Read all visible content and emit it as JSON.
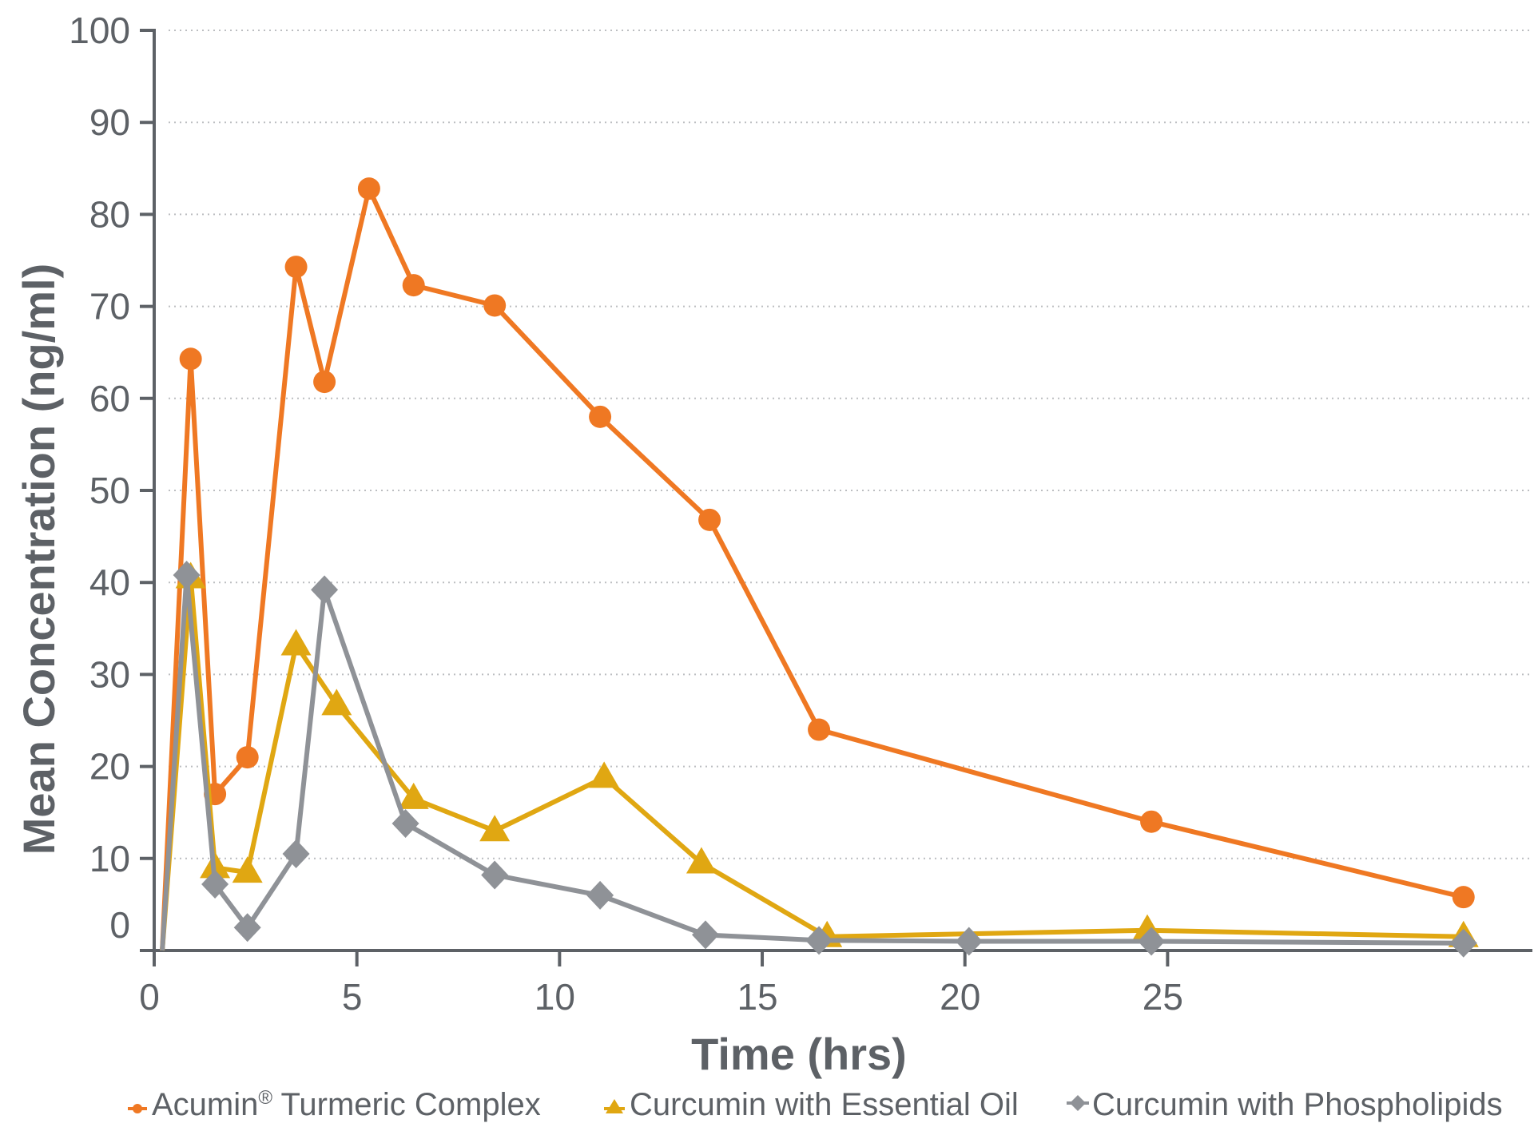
{
  "chart_data": {
    "type": "line",
    "title": "",
    "xlabel": "Time (hrs)",
    "ylabel": "Mean Concentration (ng/ml)",
    "xlim": [
      0,
      34
    ],
    "ylim": [
      0,
      100
    ],
    "xticks": [
      0,
      5,
      10,
      15,
      20,
      25
    ],
    "yticks": [
      0,
      10,
      20,
      30,
      40,
      50,
      60,
      70,
      80,
      90,
      100
    ],
    "grid": "horizontal-dotted",
    "legend_position": "bottom",
    "series": [
      {
        "name": "Acumin® Turmeric Complex",
        "legend_name": "Acumin",
        "legend_mark": "®",
        "legend_suffix": " Turmeric Complex",
        "color": "#ef7823",
        "marker": "circle",
        "points": [
          [
            0.2,
            0
          ],
          [
            0.9,
            64.3
          ],
          [
            1.5,
            17
          ],
          [
            2.3,
            21
          ],
          [
            3.5,
            74.3
          ],
          [
            4.2,
            61.8
          ],
          [
            5.3,
            82.8
          ],
          [
            6.4,
            72.3
          ],
          [
            8.4,
            70.1
          ],
          [
            11.0,
            58.0
          ],
          [
            13.7,
            46.8
          ],
          [
            16.4,
            24.0
          ],
          [
            24.6,
            14.0
          ],
          [
            32.3,
            5.8
          ]
        ]
      },
      {
        "name": "Curcumin with Essential Oil",
        "legend_name": "Curcumin with Essential Oil",
        "color": "#e0a712",
        "marker": "triangle",
        "points": [
          [
            0.2,
            0
          ],
          [
            0.9,
            40.5
          ],
          [
            1.5,
            9.0
          ],
          [
            2.3,
            8.5
          ],
          [
            3.5,
            33.2
          ],
          [
            4.5,
            26.7
          ],
          [
            6.4,
            16.5
          ],
          [
            8.4,
            13.0
          ],
          [
            11.1,
            18.8
          ],
          [
            13.5,
            9.5
          ],
          [
            16.6,
            1.5
          ],
          [
            24.5,
            2.2
          ],
          [
            32.3,
            1.5
          ]
        ]
      },
      {
        "name": "Curcumin with Phospholipids",
        "legend_name": "Curcumin with Phospholipids",
        "color": "#8f9297",
        "marker": "diamond",
        "points": [
          [
            0.2,
            0
          ],
          [
            0.8,
            40.8
          ],
          [
            1.5,
            7.2
          ],
          [
            2.3,
            2.5
          ],
          [
            3.5,
            10.5
          ],
          [
            4.2,
            39.2
          ],
          [
            6.2,
            13.8
          ],
          [
            8.4,
            8.2
          ],
          [
            11.0,
            6.0
          ],
          [
            13.6,
            1.7
          ],
          [
            16.4,
            1.1
          ],
          [
            20.1,
            1.0
          ],
          [
            24.6,
            1.0
          ],
          [
            32.3,
            0.8
          ]
        ]
      }
    ]
  }
}
